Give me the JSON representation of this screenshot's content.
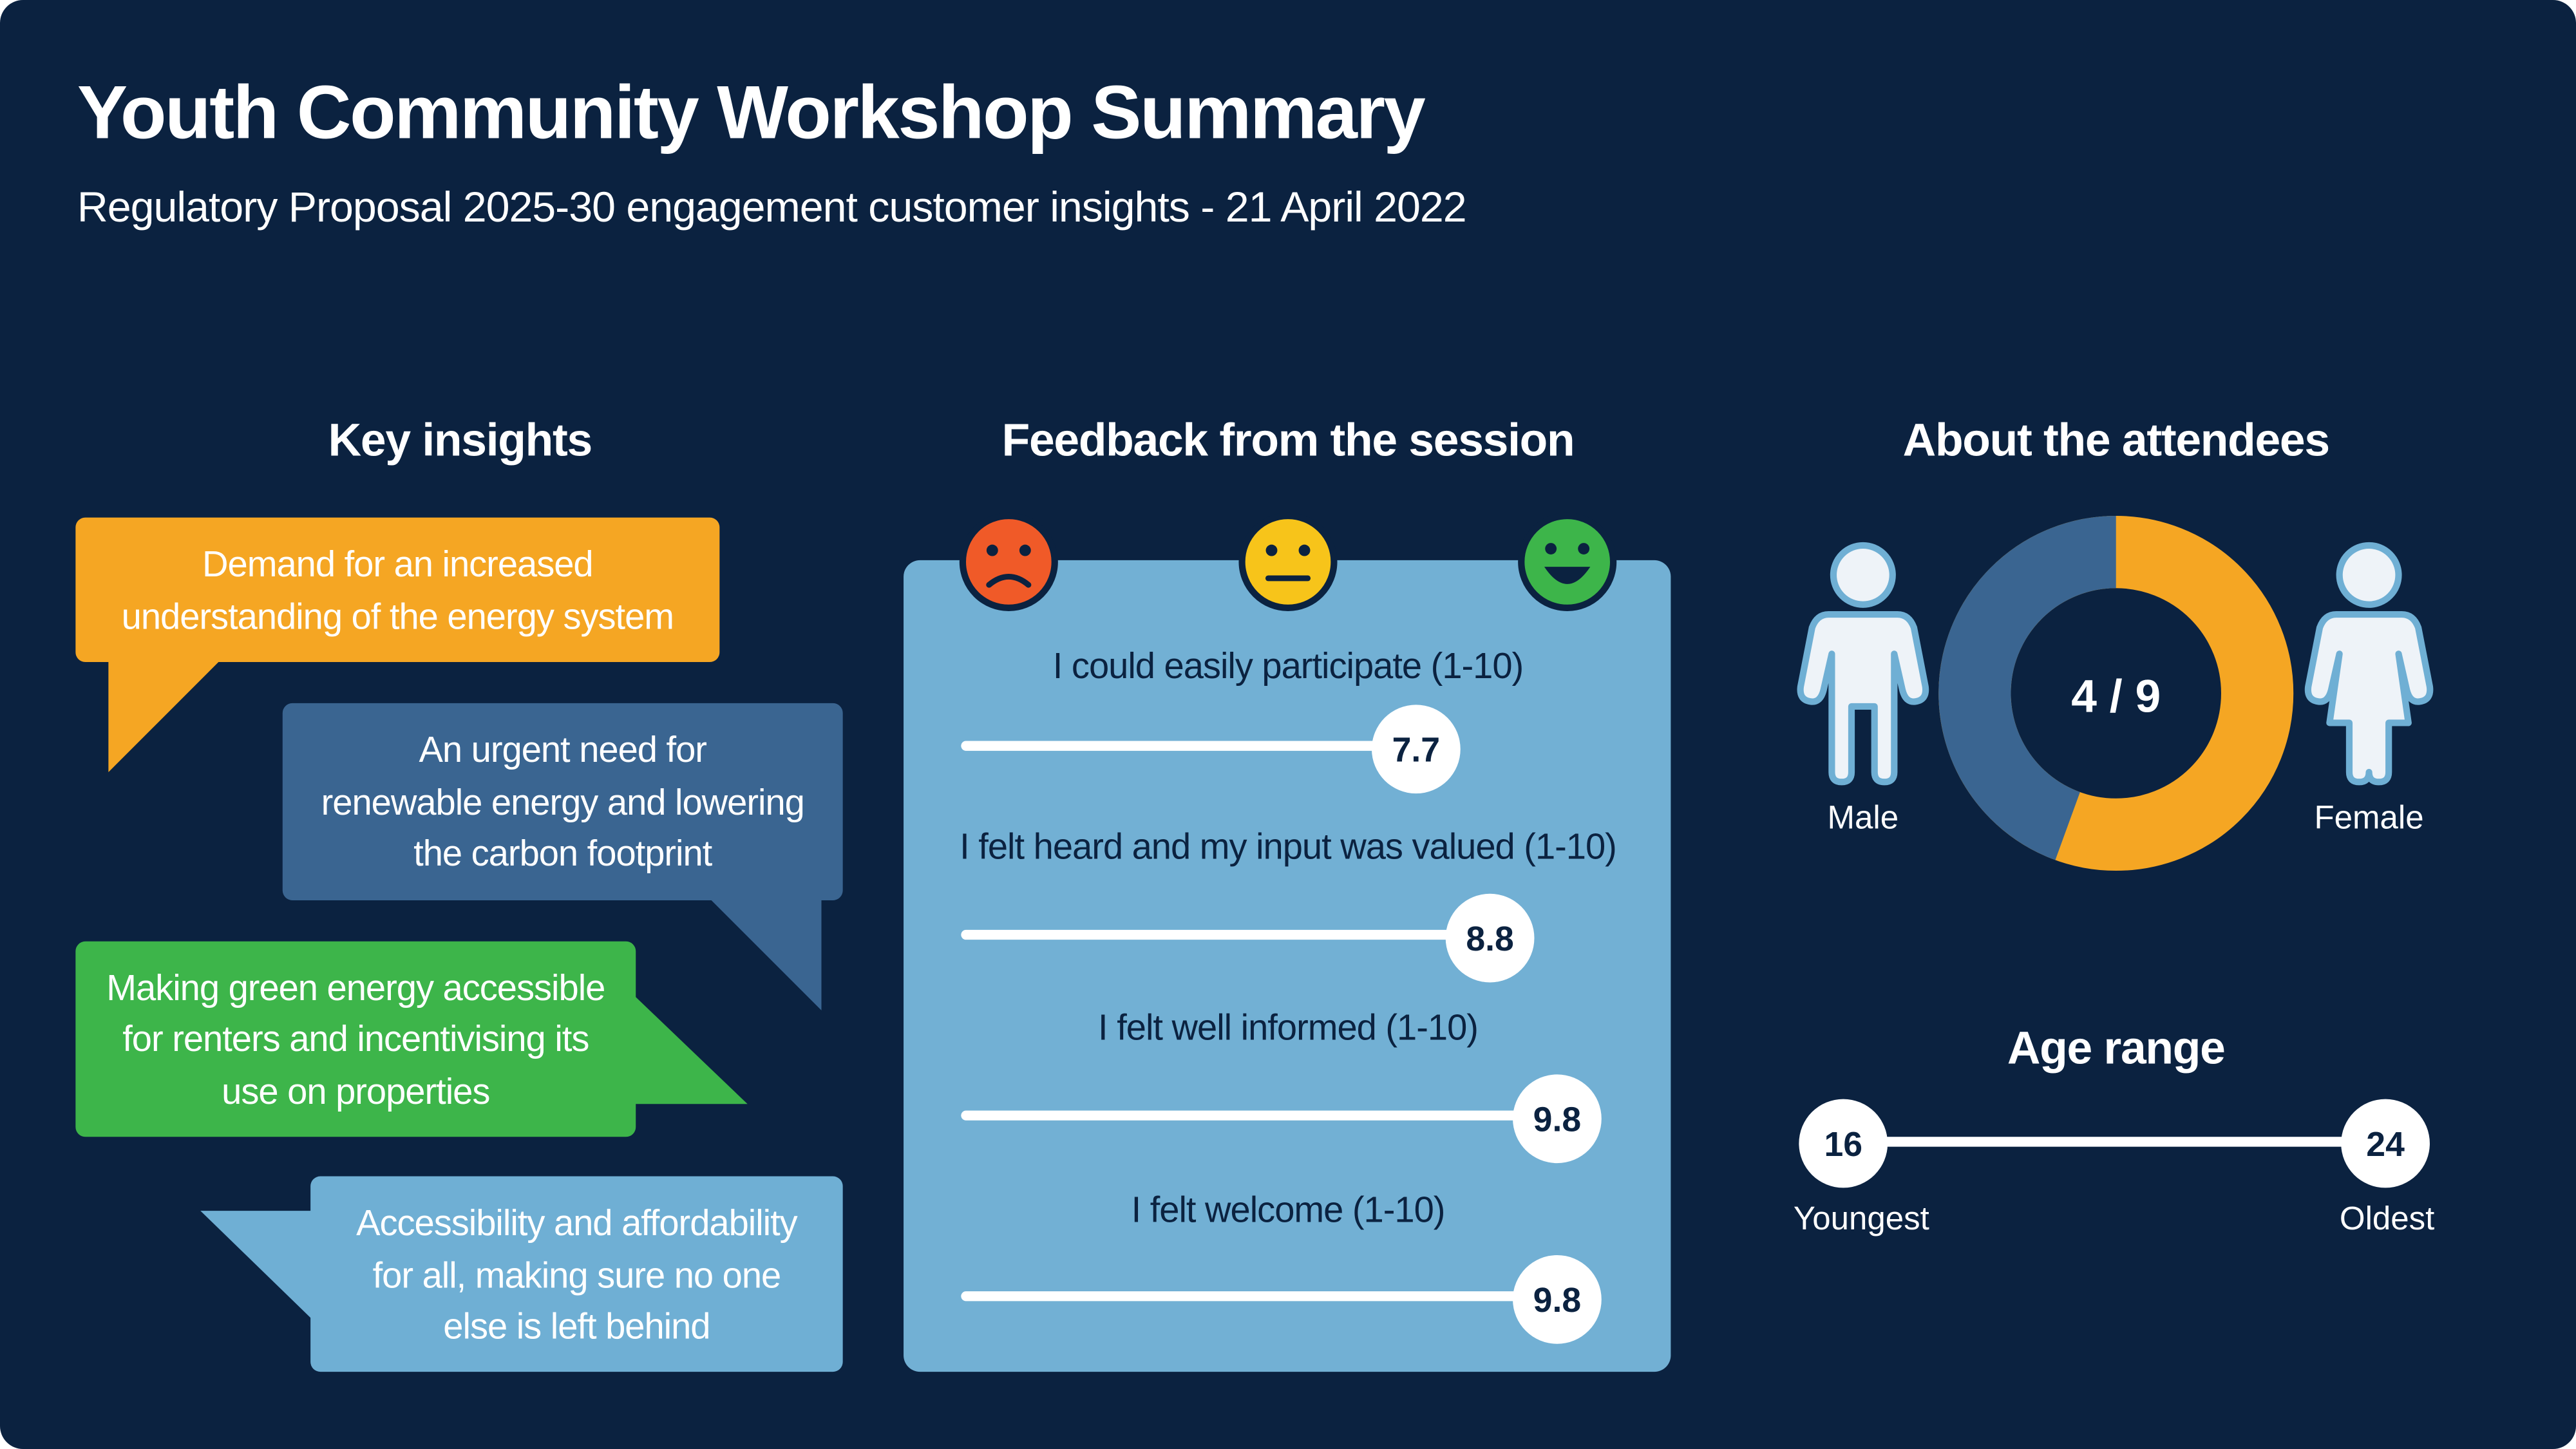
{
  "header": {
    "title": "Youth Community Workshop Summary",
    "subtitle": "Regulatory Proposal 2025-30 engagement customer insights - 21 April 2022"
  },
  "key_insights": {
    "heading": "Key insights",
    "items": [
      {
        "lines": [
          "Demand for an increased",
          "understanding of the energy system"
        ],
        "color": "#f5a623"
      },
      {
        "lines": [
          "An urgent need for",
          "renewable energy and lowering",
          "the carbon footprint"
        ],
        "color": "#3a6591"
      },
      {
        "lines": [
          "Making green energy accessible",
          "for renters and incentivising its",
          "use on properties"
        ],
        "color": "#3db54a"
      },
      {
        "lines": [
          "Accessibility and affordability",
          "for all, making sure no one",
          "else is left behind"
        ],
        "color": "#6fafd4"
      }
    ]
  },
  "feedback": {
    "heading": "Feedback from the session",
    "range": [
      1,
      10
    ],
    "items": [
      {
        "label": "I could easily participate (1-10)",
        "value": 7.7
      },
      {
        "label": "I felt heard and my input was valued (1-10)",
        "value": 8.8
      },
      {
        "label": "I felt well informed (1-10)",
        "value": 9.8
      },
      {
        "label": "I felt welcome (1-10)",
        "value": 9.8
      }
    ]
  },
  "attendees": {
    "heading": "About the attendees",
    "male_label": "Male",
    "female_label": "Female",
    "male_count": 4,
    "total": 9,
    "ratio_label": "4 / 9",
    "male_color": "#3a6591",
    "female_color": "#f5a623"
  },
  "age_range": {
    "heading": "Age range",
    "youngest": 16,
    "youngest_label": "Youngest",
    "oldest": 24,
    "oldest_label": "Oldest"
  }
}
